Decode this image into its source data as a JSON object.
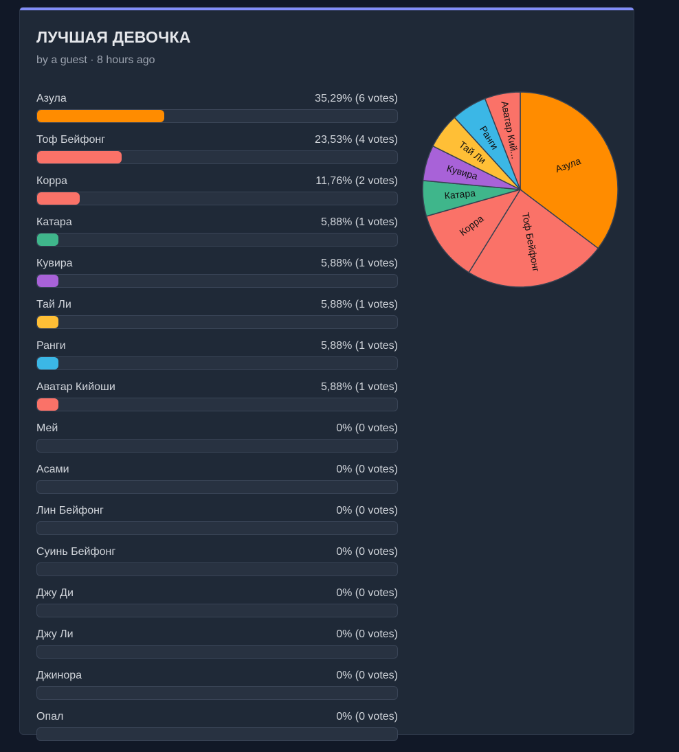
{
  "poll": {
    "title": "ЛУЧШАЯ ДЕВОЧКА",
    "meta": "by a guest · 8 hours ago"
  },
  "options": [
    {
      "label": "Азула",
      "pct_text": "35,29% (6 votes)",
      "votes": 6,
      "color": "#ff8c00"
    },
    {
      "label": "Тоф Бейфонг",
      "pct_text": "23,53% (4 votes)",
      "votes": 4,
      "color": "#fa7268"
    },
    {
      "label": "Корра",
      "pct_text": "11,76% (2 votes)",
      "votes": 2,
      "color": "#fa7268"
    },
    {
      "label": "Катара",
      "pct_text": "5,88% (1 votes)",
      "votes": 1,
      "color": "#3fb68b"
    },
    {
      "label": "Кувира",
      "pct_text": "5,88% (1 votes)",
      "votes": 1,
      "color": "#a862d8"
    },
    {
      "label": "Тай Ли",
      "pct_text": "5,88% (1 votes)",
      "votes": 1,
      "color": "#ffbf36"
    },
    {
      "label": "Ранги",
      "pct_text": "5,88% (1 votes)",
      "votes": 1,
      "color": "#3bb7e6"
    },
    {
      "label": "Аватар Кийоши",
      "pct_text": "5,88% (1 votes)",
      "votes": 1,
      "color": "#fa7268"
    },
    {
      "label": "Мей",
      "pct_text": "0% (0 votes)",
      "votes": 0,
      "color": "#fa7268"
    },
    {
      "label": "Асами",
      "pct_text": "0% (0 votes)",
      "votes": 0,
      "color": "#fa7268"
    },
    {
      "label": "Лин Бейфонг",
      "pct_text": "0% (0 votes)",
      "votes": 0,
      "color": "#fa7268"
    },
    {
      "label": "Суинь Бейфонг",
      "pct_text": "0% (0 votes)",
      "votes": 0,
      "color": "#fa7268"
    },
    {
      "label": "Джу Ди",
      "pct_text": "0% (0 votes)",
      "votes": 0,
      "color": "#fa7268"
    },
    {
      "label": "Джу Ли",
      "pct_text": "0% (0 votes)",
      "votes": 0,
      "color": "#fa7268"
    },
    {
      "label": "Джинора",
      "pct_text": "0% (0 votes)",
      "votes": 0,
      "color": "#fa7268"
    },
    {
      "label": "Опал",
      "pct_text": "0% (0 votes)",
      "votes": 0,
      "color": "#fa7268"
    }
  ],
  "chart_data": {
    "type": "pie",
    "slices": [
      {
        "label": "Азула",
        "value": 6,
        "color": "#ff8c00"
      },
      {
        "label": "Тоф Бейфонг",
        "value": 4,
        "color": "#fa7268"
      },
      {
        "label": "Корра",
        "value": 2,
        "color": "#fa7268"
      },
      {
        "label": "Катара",
        "value": 1,
        "color": "#3fb68b"
      },
      {
        "label": "Кувира",
        "value": 1,
        "color": "#a862d8"
      },
      {
        "label": "Тай Ли",
        "value": 1,
        "color": "#ffbf36"
      },
      {
        "label": "Ранги",
        "value": 1,
        "color": "#3bb7e6"
      },
      {
        "label": "Аватар Кий...",
        "value": 1,
        "color": "#fa7268"
      }
    ]
  }
}
